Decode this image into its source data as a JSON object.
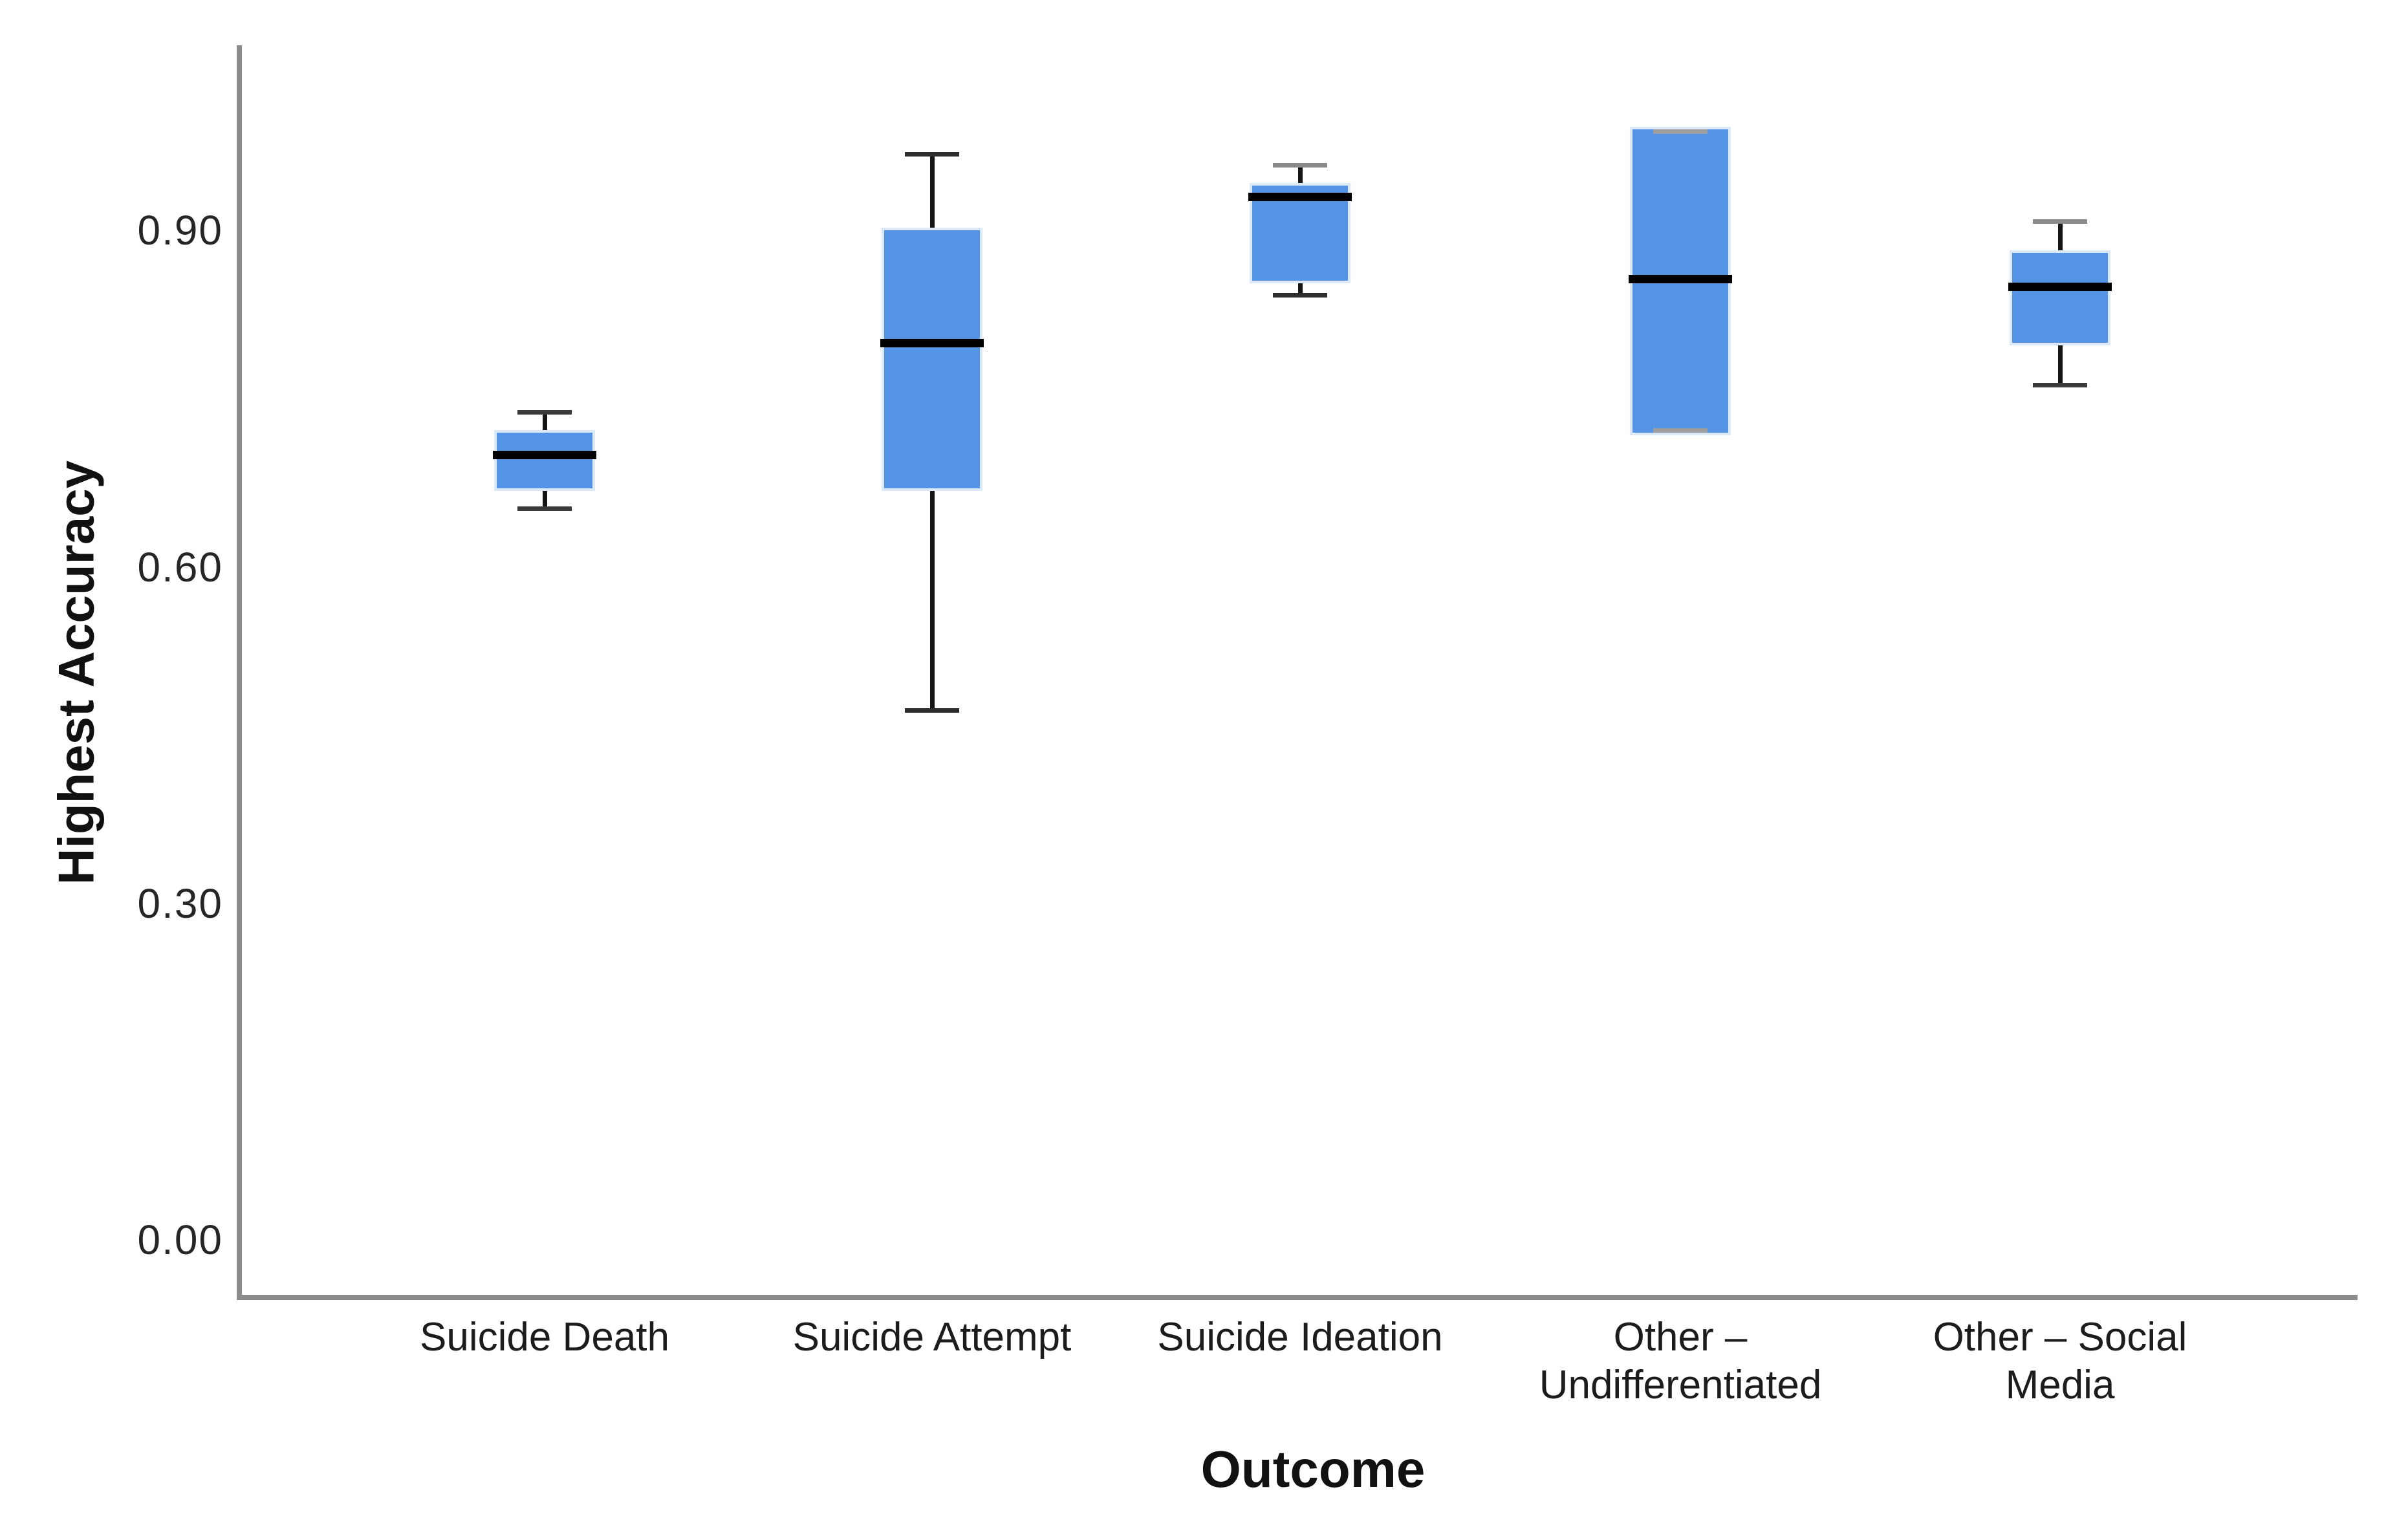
{
  "figure": {
    "background": "#ffffff"
  },
  "y_axis": {
    "title": "Highest Accuracy",
    "tick_labels": [
      "0.90",
      "0.60",
      "0.30",
      "0.00"
    ],
    "tick_values": [
      0.9,
      0.6,
      0.3,
      0.0
    ]
  },
  "x_axis": {
    "title": "Outcome",
    "category_labels": [
      "Suicide Death",
      "Suicide Attempt",
      "Suicide Ideation",
      "Other –\nUndifferentiated",
      "Other – Social Media"
    ]
  },
  "chart_data": {
    "type": "box",
    "title": "",
    "xlabel": "Outcome",
    "ylabel": "Highest Accuracy",
    "ylim": [
      -0.05,
      1.02
    ],
    "yticks": [
      0.0,
      0.3,
      0.6,
      0.9
    ],
    "grid": false,
    "legend": null,
    "categories": [
      "Suicide Death",
      "Suicide Attempt",
      "Suicide Ideation",
      "Other – Undifferentiated",
      "Other – Social Media"
    ],
    "series": [
      {
        "name": "Suicide Death",
        "whislo": 0.65,
        "q1": 0.67,
        "med": 0.7,
        "q3": 0.72,
        "whishi": 0.74
      },
      {
        "name": "Suicide Attempt",
        "whislo": 0.47,
        "q1": 0.67,
        "med": 0.8,
        "q3": 0.9,
        "whishi": 0.97
      },
      {
        "name": "Suicide Ideation",
        "whislo": 0.84,
        "q1": 0.855,
        "med": 0.93,
        "q3": 0.94,
        "whishi": 0.96
      },
      {
        "name": "Other – Undifferentiated",
        "whislo": 0.72,
        "q1": 0.72,
        "med": 0.857,
        "q3": 0.99,
        "whishi": 0.99
      },
      {
        "name": "Other – Social Media",
        "whislo": 0.76,
        "q1": 0.8,
        "med": 0.85,
        "q3": 0.88,
        "whishi": 0.91
      }
    ],
    "box_fill_color": "#5593e4",
    "median_color": "#000000",
    "whisker_color": "#161616",
    "axis_line_color": "#8c8c8c",
    "box_halo_color": "#dce9f9"
  }
}
